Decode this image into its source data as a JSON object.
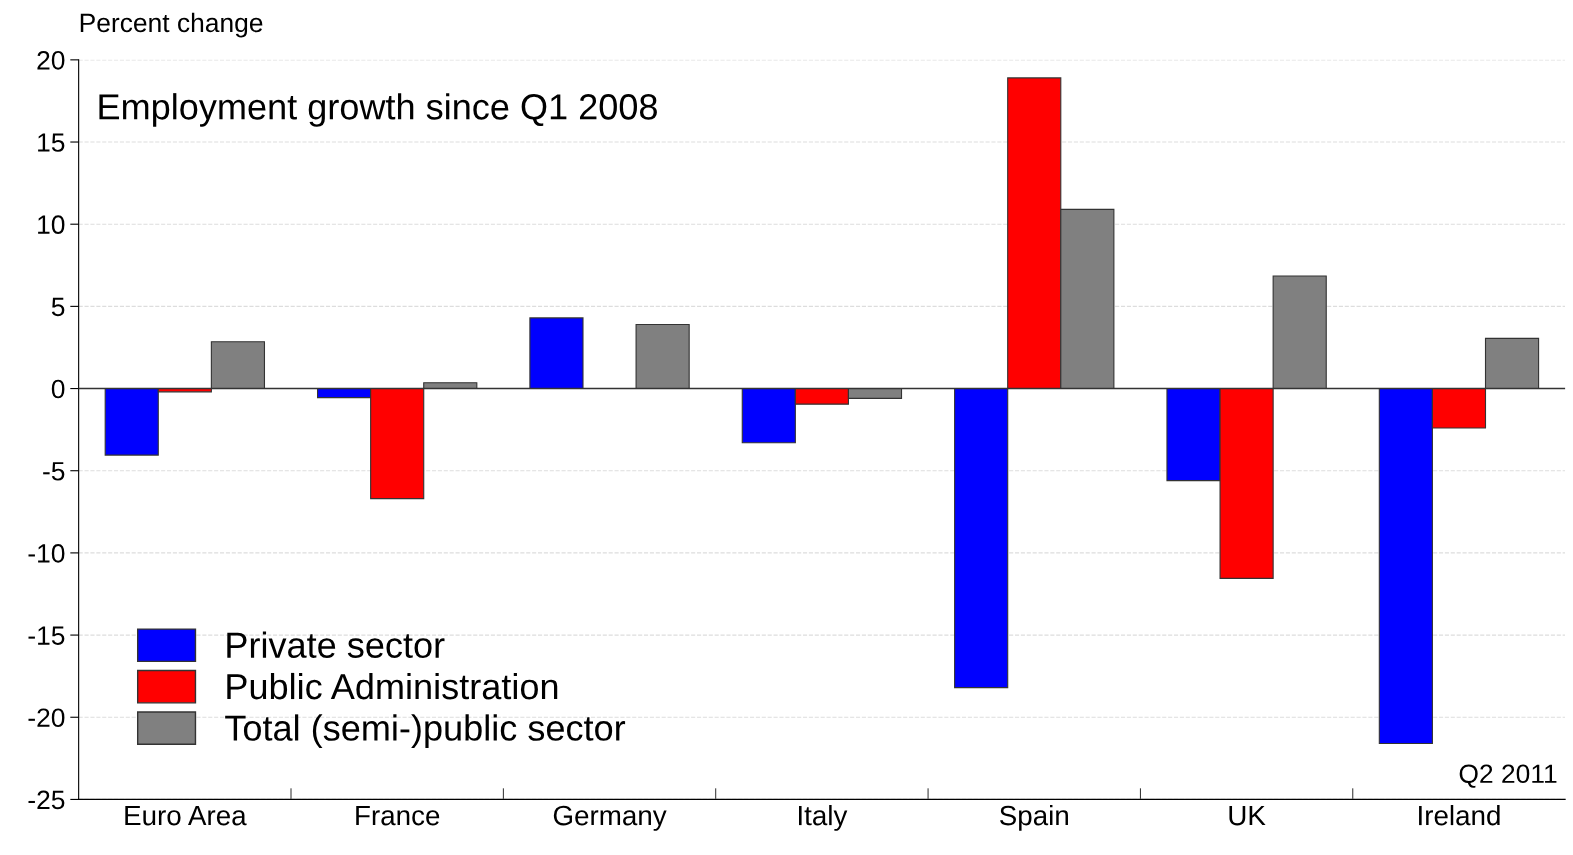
{
  "chart_data": {
    "type": "bar",
    "title": "Employment growth since Q1 2008",
    "ylabel": "Percent change",
    "categories": [
      "Euro Area",
      "France",
      "Germany",
      "Italy",
      "Spain",
      "UK",
      "Ireland"
    ],
    "series": [
      {
        "name": "Private sector",
        "color": "#0000ff",
        "values": [
          -4.05,
          -0.55,
          4.3,
          -3.3,
          -18.2,
          -5.6,
          -21.6
        ]
      },
      {
        "name": "Public Administration",
        "color": "#ff0000",
        "values": [
          -0.2,
          -6.7,
          null,
          -0.95,
          18.9,
          -11.55,
          -2.4
        ]
      },
      {
        "name": "Total (semi-)public sector",
        "color": "#808080",
        "values": [
          2.85,
          0.35,
          3.9,
          -0.6,
          10.9,
          6.85,
          3.05
        ]
      }
    ],
    "ylim": [
      -25,
      20
    ],
    "yticks": [
      -25,
      -20,
      -15,
      -10,
      -5,
      0,
      5,
      10,
      15,
      20
    ],
    "grid": "y",
    "legend": "bottom left",
    "annotations": [
      "Q2 2011"
    ]
  }
}
